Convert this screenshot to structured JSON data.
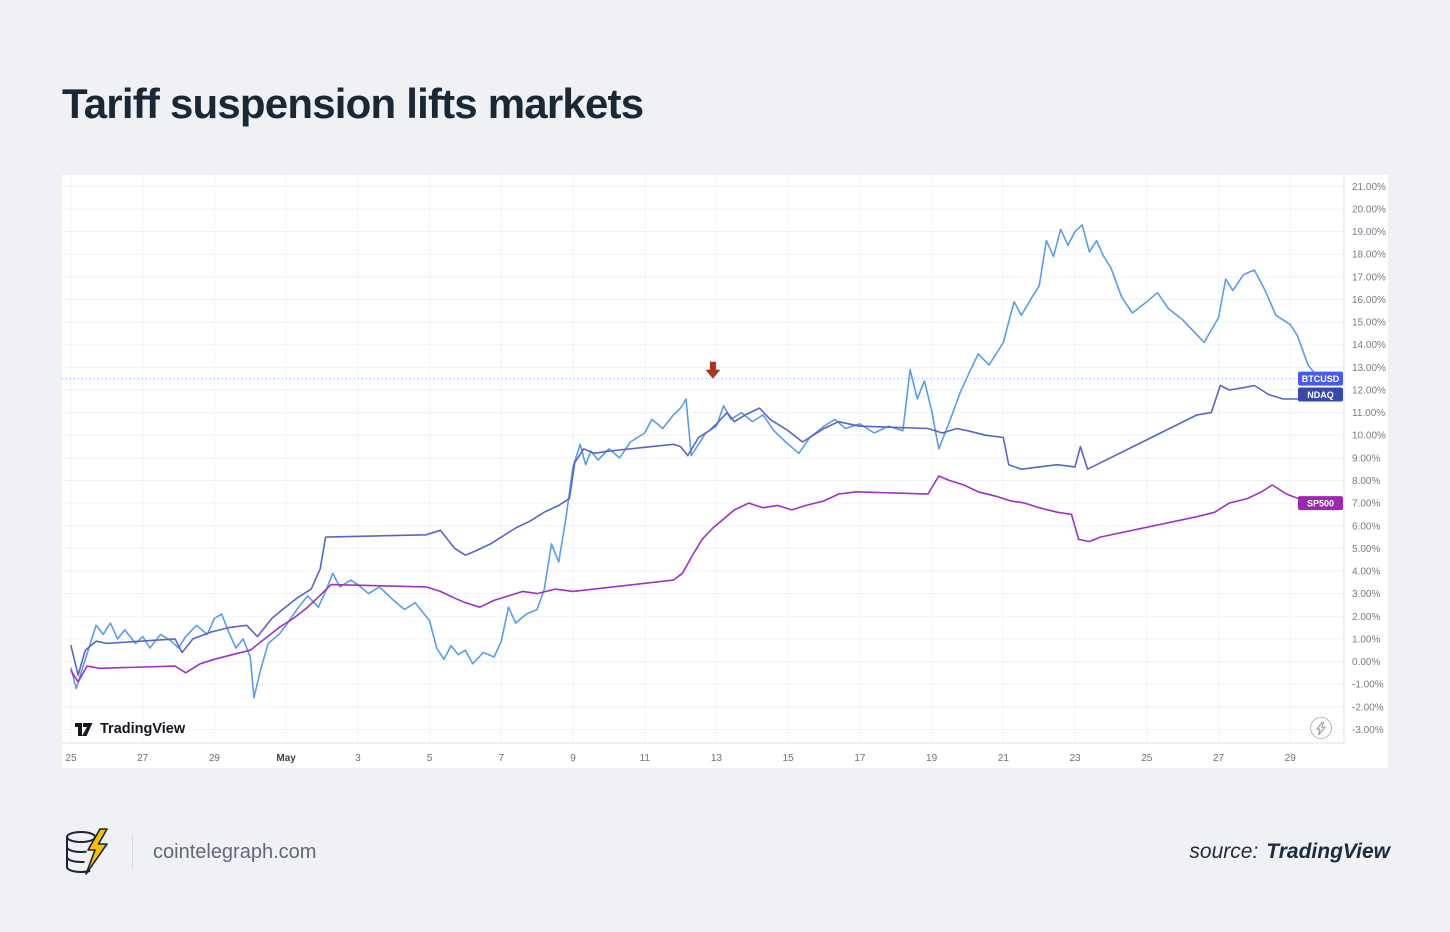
{
  "page": {
    "title": "Tariff suspension lifts markets",
    "background": "#eff1f4"
  },
  "watermark": {
    "text": "TradingView"
  },
  "boost_button": {
    "icon": "lightning-icon"
  },
  "footer": {
    "site": "cointelegraph.com",
    "source_label": "source:",
    "source_name": "TradingView"
  },
  "chart_data": {
    "type": "line",
    "title": "Tariff suspension lifts markets",
    "x_description": "days since April 25 (daily % change basis)",
    "x_domain": [
      -0.25,
      35.5
    ],
    "y_domain": [
      -3.6,
      21.5
    ],
    "grid": true,
    "legend_position": "right-edge-price-labels",
    "x_tick_days": [
      0,
      2,
      4,
      6,
      8,
      10,
      12,
      14,
      16,
      18,
      20,
      22,
      24,
      26,
      28,
      30,
      32,
      34
    ],
    "x_tick_labels": [
      "25",
      "27",
      "29",
      "May",
      "3",
      "5",
      "7",
      "9",
      "11",
      "13",
      "15",
      "17",
      "19",
      "21",
      "23",
      "25",
      "27",
      "29"
    ],
    "y_ticks": [
      21,
      20,
      19,
      18,
      17,
      16,
      15,
      14,
      13,
      12,
      11,
      10,
      9,
      8,
      7,
      6,
      5,
      4,
      3,
      2,
      1,
      0,
      -1,
      -2,
      -3
    ],
    "y_tick_suffix": "%",
    "price_line": {
      "value": 12.5,
      "color": "#6b8be8"
    },
    "annotation": {
      "shape": "arrow-down",
      "day": 17.9,
      "value": 13.25,
      "color": "#a93226"
    },
    "series": [
      {
        "name": "BTCUSD",
        "color": "#5c9ce6",
        "label_bg": "#4a5ae8",
        "last_value": 12.5,
        "points": [
          [
            0,
            -0.3
          ],
          [
            0.15,
            -1.2
          ],
          [
            0.3,
            -0.4
          ],
          [
            0.5,
            0.6
          ],
          [
            0.7,
            1.6
          ],
          [
            0.9,
            1.2
          ],
          [
            1.1,
            1.7
          ],
          [
            1.3,
            1.0
          ],
          [
            1.5,
            1.4
          ],
          [
            1.8,
            0.8
          ],
          [
            2.0,
            1.1
          ],
          [
            2.2,
            0.6
          ],
          [
            2.5,
            1.2
          ],
          [
            2.8,
            0.9
          ],
          [
            3.0,
            0.6
          ],
          [
            3.2,
            1.1
          ],
          [
            3.5,
            1.6
          ],
          [
            3.8,
            1.2
          ],
          [
            4.0,
            1.9
          ],
          [
            4.2,
            2.1
          ],
          [
            4.4,
            1.3
          ],
          [
            4.6,
            0.6
          ],
          [
            4.8,
            1.0
          ],
          [
            5.0,
            0.2
          ],
          [
            5.1,
            -1.6
          ],
          [
            5.3,
            -0.3
          ],
          [
            5.5,
            0.8
          ],
          [
            5.8,
            1.2
          ],
          [
            6.0,
            1.6
          ],
          [
            6.3,
            2.3
          ],
          [
            6.6,
            2.9
          ],
          [
            6.9,
            2.4
          ],
          [
            7.1,
            3.1
          ],
          [
            7.3,
            3.9
          ],
          [
            7.5,
            3.3
          ],
          [
            7.8,
            3.6
          ],
          [
            8.0,
            3.4
          ],
          [
            8.3,
            3.0
          ],
          [
            8.6,
            3.3
          ],
          [
            9.0,
            2.7
          ],
          [
            9.3,
            2.3
          ],
          [
            9.6,
            2.6
          ],
          [
            10.0,
            1.8
          ],
          [
            10.2,
            0.6
          ],
          [
            10.4,
            0.1
          ],
          [
            10.6,
            0.7
          ],
          [
            10.8,
            0.3
          ],
          [
            11.0,
            0.5
          ],
          [
            11.2,
            -0.1
          ],
          [
            11.5,
            0.4
          ],
          [
            11.8,
            0.2
          ],
          [
            12.0,
            0.9
          ],
          [
            12.2,
            2.4
          ],
          [
            12.4,
            1.7
          ],
          [
            12.7,
            2.1
          ],
          [
            13.0,
            2.3
          ],
          [
            13.2,
            3.2
          ],
          [
            13.4,
            5.2
          ],
          [
            13.6,
            4.4
          ],
          [
            13.8,
            6.3
          ],
          [
            14.0,
            8.6
          ],
          [
            14.2,
            9.6
          ],
          [
            14.35,
            8.7
          ],
          [
            14.5,
            9.3
          ],
          [
            14.7,
            8.9
          ],
          [
            15.0,
            9.4
          ],
          [
            15.3,
            9.0
          ],
          [
            15.6,
            9.7
          ],
          [
            16.0,
            10.1
          ],
          [
            16.2,
            10.7
          ],
          [
            16.5,
            10.3
          ],
          [
            16.8,
            10.9
          ],
          [
            17.0,
            11.2
          ],
          [
            17.15,
            11.6
          ],
          [
            17.3,
            9.1
          ],
          [
            17.5,
            9.6
          ],
          [
            17.7,
            10.1
          ],
          [
            18.0,
            10.4
          ],
          [
            18.2,
            11.3
          ],
          [
            18.4,
            10.7
          ],
          [
            18.7,
            11.0
          ],
          [
            19.0,
            10.6
          ],
          [
            19.3,
            10.9
          ],
          [
            19.6,
            10.2
          ],
          [
            20.0,
            9.6
          ],
          [
            20.3,
            9.2
          ],
          [
            20.6,
            9.9
          ],
          [
            21.0,
            10.4
          ],
          [
            21.3,
            10.7
          ],
          [
            21.6,
            10.3
          ],
          [
            22.0,
            10.5
          ],
          [
            22.4,
            10.1
          ],
          [
            22.8,
            10.4
          ],
          [
            23.2,
            10.2
          ],
          [
            23.4,
            12.9
          ],
          [
            23.6,
            11.6
          ],
          [
            23.8,
            12.4
          ],
          [
            24.0,
            11.1
          ],
          [
            24.2,
            9.4
          ],
          [
            24.5,
            10.6
          ],
          [
            24.8,
            11.9
          ],
          [
            25.0,
            12.6
          ],
          [
            25.3,
            13.6
          ],
          [
            25.6,
            13.1
          ],
          [
            26.0,
            14.1
          ],
          [
            26.3,
            15.9
          ],
          [
            26.5,
            15.3
          ],
          [
            26.8,
            16.1
          ],
          [
            27.0,
            16.6
          ],
          [
            27.2,
            18.6
          ],
          [
            27.4,
            17.9
          ],
          [
            27.6,
            19.1
          ],
          [
            27.8,
            18.4
          ],
          [
            28.0,
            19.0
          ],
          [
            28.2,
            19.3
          ],
          [
            28.4,
            18.1
          ],
          [
            28.6,
            18.6
          ],
          [
            28.8,
            17.9
          ],
          [
            29.0,
            17.4
          ],
          [
            29.3,
            16.1
          ],
          [
            29.6,
            15.4
          ],
          [
            30.0,
            15.9
          ],
          [
            30.3,
            16.3
          ],
          [
            30.6,
            15.6
          ],
          [
            31.0,
            15.1
          ],
          [
            31.3,
            14.6
          ],
          [
            31.6,
            14.1
          ],
          [
            32.0,
            15.2
          ],
          [
            32.2,
            16.9
          ],
          [
            32.4,
            16.4
          ],
          [
            32.7,
            17.1
          ],
          [
            33.0,
            17.3
          ],
          [
            33.3,
            16.4
          ],
          [
            33.6,
            15.3
          ],
          [
            34.0,
            14.9
          ],
          [
            34.2,
            14.4
          ],
          [
            34.5,
            13.1
          ],
          [
            34.7,
            12.7
          ],
          [
            34.8,
            12.5
          ]
        ]
      },
      {
        "name": "NDAQ",
        "color": "#5a64c8",
        "label_bg": "#3949ab",
        "last_value": 11.8,
        "points": [
          [
            0,
            0.7
          ],
          [
            0.2,
            -0.6
          ],
          [
            0.4,
            0.5
          ],
          [
            0.7,
            0.9
          ],
          [
            1.0,
            0.8
          ],
          [
            2.9,
            1.0
          ],
          [
            3.1,
            0.4
          ],
          [
            3.4,
            1.0
          ],
          [
            3.9,
            1.3
          ],
          [
            4.4,
            1.5
          ],
          [
            4.9,
            1.6
          ],
          [
            5.2,
            1.1
          ],
          [
            5.6,
            1.9
          ],
          [
            5.9,
            2.3
          ],
          [
            6.3,
            2.8
          ],
          [
            6.7,
            3.2
          ],
          [
            6.95,
            4.1
          ],
          [
            7.1,
            5.5
          ],
          [
            9.9,
            5.6
          ],
          [
            10.3,
            5.8
          ],
          [
            10.7,
            5.0
          ],
          [
            11.0,
            4.7
          ],
          [
            11.3,
            4.9
          ],
          [
            11.7,
            5.2
          ],
          [
            12.0,
            5.5
          ],
          [
            12.4,
            5.9
          ],
          [
            12.8,
            6.2
          ],
          [
            13.2,
            6.6
          ],
          [
            13.6,
            6.9
          ],
          [
            13.9,
            7.2
          ],
          [
            14.05,
            8.8
          ],
          [
            14.3,
            9.4
          ],
          [
            14.6,
            9.2
          ],
          [
            15.0,
            9.3
          ],
          [
            16.8,
            9.6
          ],
          [
            17.0,
            9.5
          ],
          [
            17.2,
            9.1
          ],
          [
            17.5,
            9.9
          ],
          [
            17.8,
            10.2
          ],
          [
            18.0,
            10.5
          ],
          [
            18.3,
            11.0
          ],
          [
            18.5,
            10.6
          ],
          [
            18.8,
            10.9
          ],
          [
            19.2,
            11.2
          ],
          [
            19.5,
            10.7
          ],
          [
            20.0,
            10.2
          ],
          [
            20.4,
            9.7
          ],
          [
            20.7,
            10.0
          ],
          [
            21.0,
            10.3
          ],
          [
            21.4,
            10.6
          ],
          [
            22.0,
            10.4
          ],
          [
            23.9,
            10.3
          ],
          [
            24.3,
            10.1
          ],
          [
            24.7,
            10.3
          ],
          [
            25.0,
            10.2
          ],
          [
            25.5,
            10.0
          ],
          [
            26.0,
            9.9
          ],
          [
            26.15,
            8.7
          ],
          [
            26.5,
            8.5
          ],
          [
            27.0,
            8.6
          ],
          [
            27.5,
            8.7
          ],
          [
            28.0,
            8.6
          ],
          [
            28.15,
            9.5
          ],
          [
            28.35,
            8.5
          ],
          [
            28.6,
            8.7
          ],
          [
            31.4,
            10.9
          ],
          [
            31.8,
            11.0
          ],
          [
            32.05,
            12.2
          ],
          [
            32.3,
            12.0
          ],
          [
            32.7,
            12.1
          ],
          [
            33.0,
            12.2
          ],
          [
            33.4,
            11.8
          ],
          [
            33.8,
            11.6
          ],
          [
            34.2,
            11.6
          ],
          [
            34.6,
            11.7
          ],
          [
            34.9,
            11.8
          ]
        ]
      },
      {
        "name": "SP500",
        "color": "#9e30c9",
        "label_bg": "#9c27b0",
        "last_value": 7.0,
        "points": [
          [
            0,
            -0.4
          ],
          [
            0.2,
            -0.9
          ],
          [
            0.45,
            -0.2
          ],
          [
            0.8,
            -0.3
          ],
          [
            2.9,
            -0.2
          ],
          [
            3.2,
            -0.5
          ],
          [
            3.6,
            -0.1
          ],
          [
            4.0,
            0.1
          ],
          [
            4.5,
            0.3
          ],
          [
            5.0,
            0.5
          ],
          [
            5.4,
            1.0
          ],
          [
            5.8,
            1.5
          ],
          [
            6.2,
            1.9
          ],
          [
            6.6,
            2.4
          ],
          [
            7.0,
            3.0
          ],
          [
            7.25,
            3.4
          ],
          [
            9.9,
            3.3
          ],
          [
            10.3,
            3.1
          ],
          [
            10.7,
            2.8
          ],
          [
            11.0,
            2.6
          ],
          [
            11.4,
            2.4
          ],
          [
            11.8,
            2.7
          ],
          [
            12.2,
            2.9
          ],
          [
            12.6,
            3.1
          ],
          [
            13.0,
            3.0
          ],
          [
            13.5,
            3.2
          ],
          [
            14.0,
            3.1
          ],
          [
            16.8,
            3.6
          ],
          [
            17.05,
            3.9
          ],
          [
            17.3,
            4.6
          ],
          [
            17.6,
            5.4
          ],
          [
            17.9,
            5.9
          ],
          [
            18.2,
            6.3
          ],
          [
            18.5,
            6.7
          ],
          [
            18.9,
            7.0
          ],
          [
            19.3,
            6.8
          ],
          [
            19.7,
            6.9
          ],
          [
            20.1,
            6.7
          ],
          [
            20.5,
            6.9
          ],
          [
            21.0,
            7.1
          ],
          [
            21.4,
            7.4
          ],
          [
            21.9,
            7.5
          ],
          [
            23.9,
            7.4
          ],
          [
            24.2,
            8.2
          ],
          [
            24.5,
            8.0
          ],
          [
            24.9,
            7.8
          ],
          [
            25.3,
            7.5
          ],
          [
            25.8,
            7.3
          ],
          [
            26.2,
            7.1
          ],
          [
            26.6,
            7.0
          ],
          [
            27.0,
            6.8
          ],
          [
            27.5,
            6.6
          ],
          [
            27.9,
            6.5
          ],
          [
            28.1,
            5.4
          ],
          [
            28.4,
            5.3
          ],
          [
            28.7,
            5.5
          ],
          [
            31.4,
            6.4
          ],
          [
            31.9,
            6.6
          ],
          [
            32.3,
            7.0
          ],
          [
            32.8,
            7.2
          ],
          [
            33.2,
            7.5
          ],
          [
            33.5,
            7.8
          ],
          [
            33.9,
            7.4
          ],
          [
            34.4,
            7.1
          ],
          [
            34.9,
            7.0
          ]
        ]
      }
    ]
  }
}
